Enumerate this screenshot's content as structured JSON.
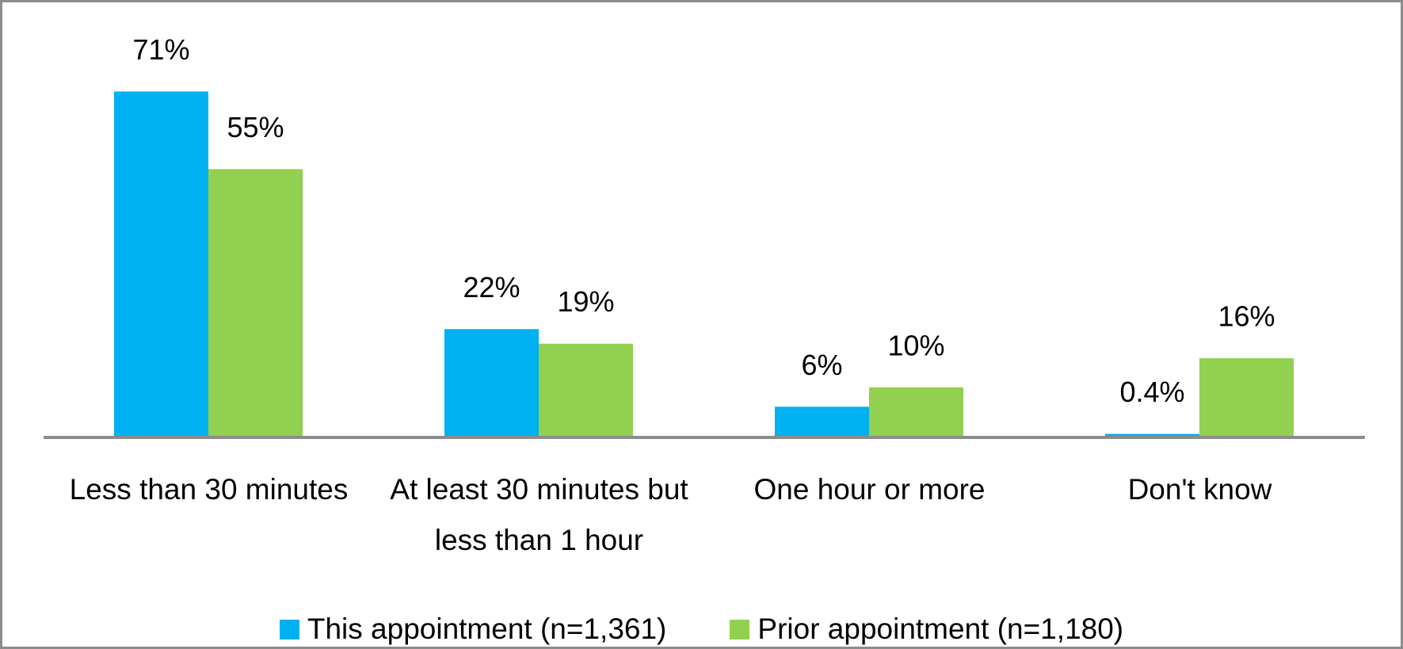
{
  "chart_data": {
    "type": "bar",
    "categories": [
      "Less than 30 minutes",
      "At least 30 minutes but less than 1 hour",
      "One hour or more",
      "Don't know"
    ],
    "series": [
      {
        "name": "This appointment (n=1,361)",
        "color": "#00b0f0",
        "values": [
          71,
          22,
          6,
          0.4
        ],
        "value_labels": [
          "71%",
          "22%",
          "6%",
          "0.4%"
        ]
      },
      {
        "name": "Prior appointment (n=1,180)",
        "color": "#92d050",
        "values": [
          55,
          19,
          10,
          16
        ],
        "value_labels": [
          "55%",
          "19%",
          "10%",
          "16%"
        ]
      }
    ]
  }
}
